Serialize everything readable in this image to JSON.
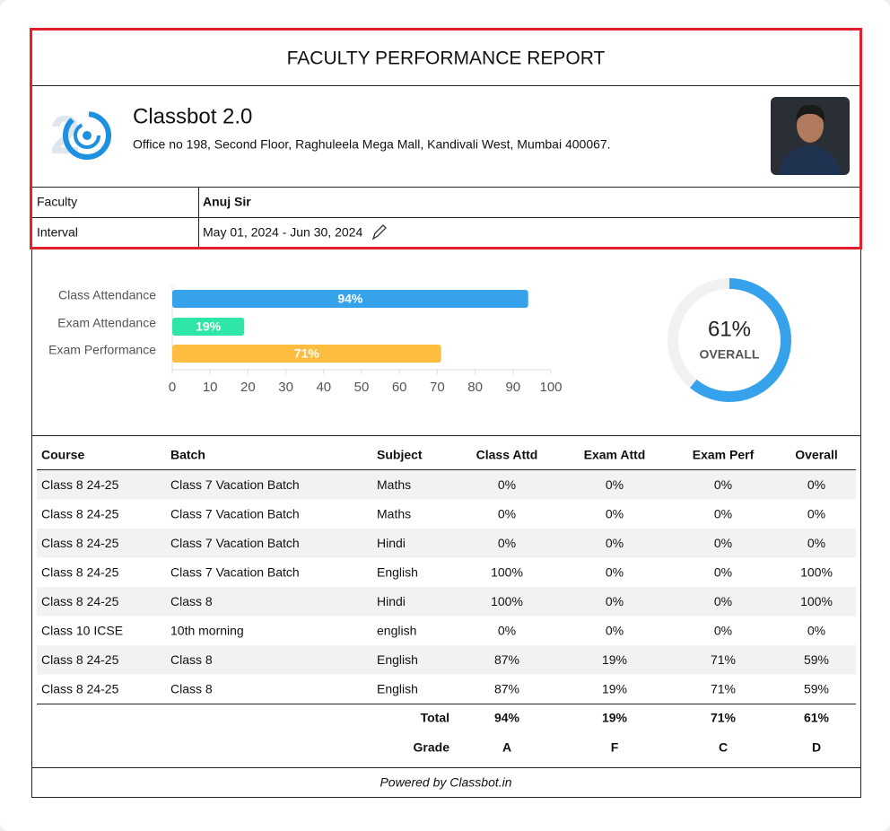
{
  "header": {
    "title": "FACULTY PERFORMANCE REPORT",
    "company": "Classbot 2.0",
    "address": "Office no 198, Second Floor, Raghuleela Mega Mall, Kandivali West, Mumbai 400067.",
    "fields": [
      {
        "label": "Faculty",
        "value": "Anuj Sir"
      },
      {
        "label": "Interval",
        "value": "May 01, 2024 - Jun 30, 2024"
      }
    ]
  },
  "chart_data": [
    {
      "type": "bar",
      "categories": [
        "Class Attendance",
        "Exam Attendance",
        "Exam Performance"
      ],
      "values": [
        94,
        19,
        71
      ],
      "value_labels": [
        "94%",
        "19%",
        "71%"
      ],
      "colors": [
        "#36a2eb",
        "#2ee6a6",
        "#ffbd3f"
      ],
      "xlim": [
        0,
        100
      ],
      "xticks": [
        0,
        10,
        20,
        30,
        40,
        50,
        60,
        70,
        80,
        90,
        100
      ]
    },
    {
      "type": "donut",
      "value": 61,
      "value_label": "61%",
      "subtitle": "OVERALL",
      "color": "#36a2eb"
    }
  ],
  "table": {
    "columns": [
      "Course",
      "Batch",
      "Subject",
      "Class Attd",
      "Exam Attd",
      "Exam Perf",
      "Overall"
    ],
    "rows": [
      [
        "Class 8 24-25",
        "Class 7 Vacation Batch",
        "Maths",
        "0%",
        "0%",
        "0%",
        "0%"
      ],
      [
        "Class 8 24-25",
        "Class 7 Vacation Batch",
        "Maths",
        "0%",
        "0%",
        "0%",
        "0%"
      ],
      [
        "Class 8 24-25",
        "Class 7 Vacation Batch",
        "Hindi",
        "0%",
        "0%",
        "0%",
        "0%"
      ],
      [
        "Class 8 24-25",
        "Class 7 Vacation Batch",
        "English",
        "100%",
        "0%",
        "0%",
        "100%"
      ],
      [
        "Class 8 24-25",
        "Class 8",
        "Hindi",
        "100%",
        "0%",
        "0%",
        "100%"
      ],
      [
        "Class 10 ICSE",
        "10th morning",
        "english",
        "0%",
        "0%",
        "0%",
        "0%"
      ],
      [
        "Class 8 24-25",
        "Class 8",
        "English",
        "87%",
        "19%",
        "71%",
        "59%"
      ],
      [
        "Class 8 24-25",
        "Class 8",
        "English",
        "87%",
        "19%",
        "71%",
        "59%"
      ]
    ],
    "summary": [
      {
        "label": "Total",
        "values": [
          "94%",
          "19%",
          "71%",
          "61%"
        ]
      },
      {
        "label": "Grade",
        "values": [
          "A",
          "F",
          "C",
          "D"
        ]
      }
    ]
  },
  "footer": "Powered by Classbot.in"
}
